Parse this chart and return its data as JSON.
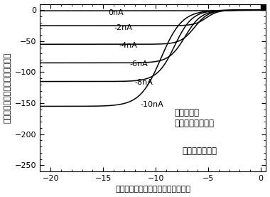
{
  "title": "",
  "xlabel": "ベース・エミッター電圧（ボルト）",
  "ylabel": "コレクター電流（ナノアンペア）",
  "xlim": [
    -21,
    0.5
  ],
  "ylim": [
    -260,
    10
  ],
  "xticks": [
    -20,
    -15,
    -10,
    -5,
    0
  ],
  "yticks": [
    0,
    -50,
    -100,
    -150,
    -200,
    -250
  ],
  "annotation1": "ベース電流",
  "annotation2": "（ナノアンペア）",
  "annotation3": "エミッター接地",
  "curves": [
    {
      "label": "0nA",
      "Ic_flat": -1,
      "V_mid": -4.2,
      "steepness": 2.5
    },
    {
      "label": "-2nA",
      "Ic_flat": -25,
      "V_mid": -5.2,
      "steepness": 1.8
    },
    {
      "label": "-4nA",
      "Ic_flat": -55,
      "V_mid": -6.3,
      "steepness": 1.5
    },
    {
      "label": "-6nA",
      "Ic_flat": -85,
      "V_mid": -7.2,
      "steepness": 1.3
    },
    {
      "label": "-8nA",
      "Ic_flat": -115,
      "V_mid": -8.2,
      "steepness": 1.2
    },
    {
      "label": "-10nA",
      "Ic_flat": -155,
      "V_mid": -9.5,
      "steepness": 1.0
    }
  ],
  "label_positions": [
    [
      -14.5,
      -4,
      "0nA"
    ],
    [
      -14.0,
      -28,
      "-2nA"
    ],
    [
      -13.5,
      -57,
      "-4nA"
    ],
    [
      -12.5,
      -87,
      "-6nA"
    ],
    [
      -12.0,
      -117,
      "-8nA"
    ],
    [
      -11.5,
      -152,
      "-10nA"
    ]
  ],
  "background_color": "#ffffff",
  "line_color": "#000000",
  "fontsize_label": 8,
  "fontsize_tick": 8,
  "fontsize_annot": 8.5
}
